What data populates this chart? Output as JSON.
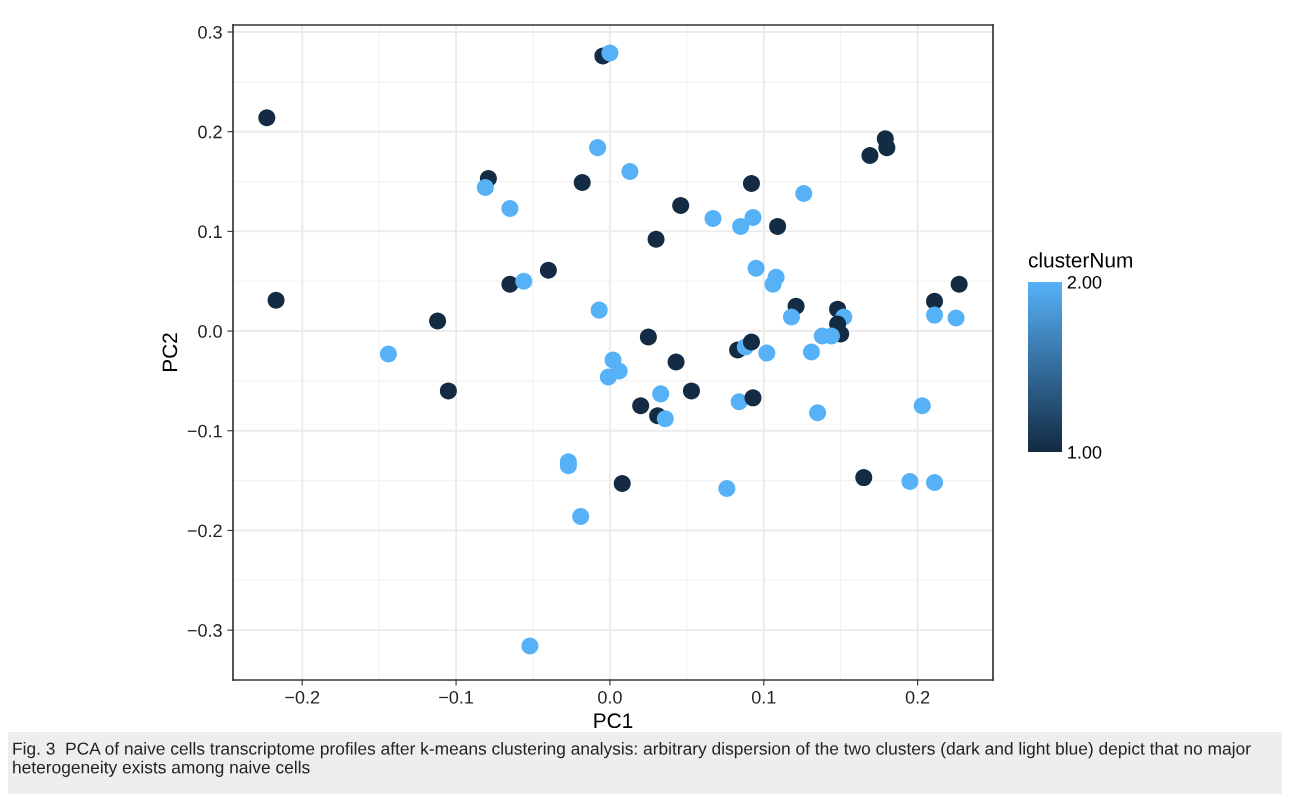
{
  "chart_data": {
    "type": "scatter",
    "xlabel": "PC1",
    "ylabel": "PC2",
    "clabel": "clusterNum",
    "x": [
      -0.0046,
      0.0,
      -0.223,
      -0.008,
      -0.079,
      -0.081,
      -0.065,
      -0.018,
      -0.04,
      -0.065,
      -0.056,
      -0.217,
      -0.112,
      -0.007,
      0.013,
      0.092,
      0.046,
      0.126,
      0.067,
      0.085,
      0.093,
      0.109,
      0.03,
      0.179,
      0.18,
      0.169,
      0.095,
      0.108,
      0.106,
      0.227,
      0.211,
      0.211,
      0.225,
      0.121,
      0.118,
      0.148,
      0.152,
      0.148,
      0.15,
      0.138,
      0.144,
      0.025,
      -0.144,
      -0.105,
      -0.027,
      -0.027,
      -0.019,
      -0.052,
      0.002,
      -0.001,
      0.006,
      0.043,
      0.02,
      0.031,
      0.036,
      0.033,
      0.053,
      0.083,
      0.088,
      0.092,
      0.102,
      0.131,
      0.084,
      0.093,
      0.135,
      0.203,
      0.008,
      0.076,
      0.165,
      0.195,
      0.211
    ],
    "values": [
      0.276,
      0.279,
      0.214,
      0.184,
      0.153,
      0.144,
      0.123,
      0.149,
      0.061,
      0.047,
      0.05,
      0.031,
      0.01,
      0.021,
      0.16,
      0.148,
      0.126,
      0.138,
      0.113,
      0.105,
      0.114,
      0.105,
      0.092,
      0.193,
      0.184,
      0.176,
      0.063,
      0.054,
      0.047,
      0.047,
      0.03,
      0.016,
      0.013,
      0.025,
      0.014,
      0.022,
      0.014,
      0.007,
      -0.003,
      -0.005,
      -0.005,
      -0.006,
      -0.023,
      -0.06,
      -0.131,
      -0.135,
      -0.186,
      -0.316,
      -0.029,
      -0.046,
      -0.04,
      -0.031,
      -0.075,
      -0.085,
      -0.088,
      -0.063,
      -0.06,
      -0.019,
      -0.016,
      -0.011,
      -0.022,
      -0.021,
      -0.071,
      -0.067,
      -0.082,
      -0.075,
      -0.153,
      -0.158,
      -0.147,
      -0.151,
      -0.152
    ],
    "cvalues": [
      1,
      2,
      1,
      2,
      1,
      2,
      2,
      1,
      1,
      1,
      2,
      1,
      1,
      2,
      2,
      1,
      1,
      2,
      2,
      2,
      2,
      1,
      1,
      1,
      1,
      1,
      2,
      2,
      2,
      1,
      1,
      2,
      2,
      1,
      2,
      1,
      2,
      1,
      1,
      2,
      2,
      1,
      2,
      1,
      2,
      2,
      2,
      2,
      2,
      2,
      2,
      1,
      1,
      1,
      2,
      2,
      1,
      1,
      2,
      1,
      2,
      2,
      2,
      1,
      2,
      2,
      1,
      2,
      1,
      2,
      2
    ],
    "xlim": [
      -0.245,
      0.249
    ],
    "ylim": [
      -0.35,
      0.307
    ],
    "xticks": [
      {
        "value": -0.2,
        "label": "−0.2"
      },
      {
        "value": -0.1,
        "label": "−0.1"
      },
      {
        "value": 0.0,
        "label": "0.0"
      },
      {
        "value": 0.1,
        "label": "0.1"
      },
      {
        "value": 0.2,
        "label": "0.2"
      }
    ],
    "yticks": [
      {
        "value": -0.3,
        "label": "−0.3"
      },
      {
        "value": -0.2,
        "label": "−0.2"
      },
      {
        "value": -0.1,
        "label": "−0.1"
      },
      {
        "value": 0.0,
        "label": "0.0"
      },
      {
        "value": 0.1,
        "label": "0.1"
      },
      {
        "value": 0.2,
        "label": "0.2"
      },
      {
        "value": 0.3,
        "label": "0.3"
      }
    ],
    "clim": [
      1,
      2
    ],
    "cticks": [
      {
        "value": 1,
        "label": "1.00"
      },
      {
        "value": 2,
        "label": "2.00"
      }
    ],
    "grid": true,
    "marker": "circle",
    "annotations": [
      "Fig. 3  PCA of naive cells transcriptome profiles after k-means clustering analysis: arbitrary dispersion of the two clusters (dark and light blue) depict that no major heterogeneity exists among naive cells"
    ]
  }
}
